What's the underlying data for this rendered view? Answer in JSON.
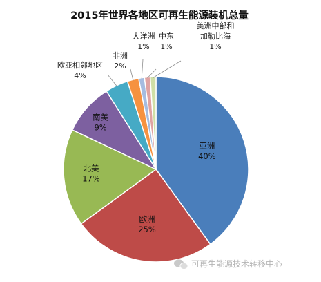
{
  "chart_data": {
    "type": "pie",
    "title": "2015年世界各地区可再生能源装机总量",
    "slices": [
      {
        "name": "亚洲",
        "percent_label": "40%",
        "value": 40,
        "color": "#4a7ebb"
      },
      {
        "name": "欧洲",
        "percent_label": "25%",
        "value": 25,
        "color": "#be4b48"
      },
      {
        "name": "北美",
        "percent_label": "17%",
        "value": 17,
        "color": "#98b954"
      },
      {
        "name": "南美",
        "percent_label": "9%",
        "value": 9,
        "color": "#7d60a0"
      },
      {
        "name": "欧亚相邻地区",
        "percent_label": "4%",
        "value": 4,
        "color": "#46aac5"
      },
      {
        "name": "非洲",
        "percent_label": "2%",
        "value": 2,
        "color": "#f69240"
      },
      {
        "name": "大洋洲",
        "percent_label": "1%",
        "value": 1,
        "color": "#a5bce0"
      },
      {
        "name": "中东",
        "percent_label": "1%",
        "value": 1,
        "color": "#e0a3a2"
      },
      {
        "name": "美洲中部和\n加勒比海",
        "percent_label": "1%",
        "value": 1,
        "color": "#cfdfa6"
      }
    ],
    "legend": "none"
  },
  "watermark": {
    "text": "可再生能源技术转移中心",
    "icon": "wechat-icon"
  }
}
